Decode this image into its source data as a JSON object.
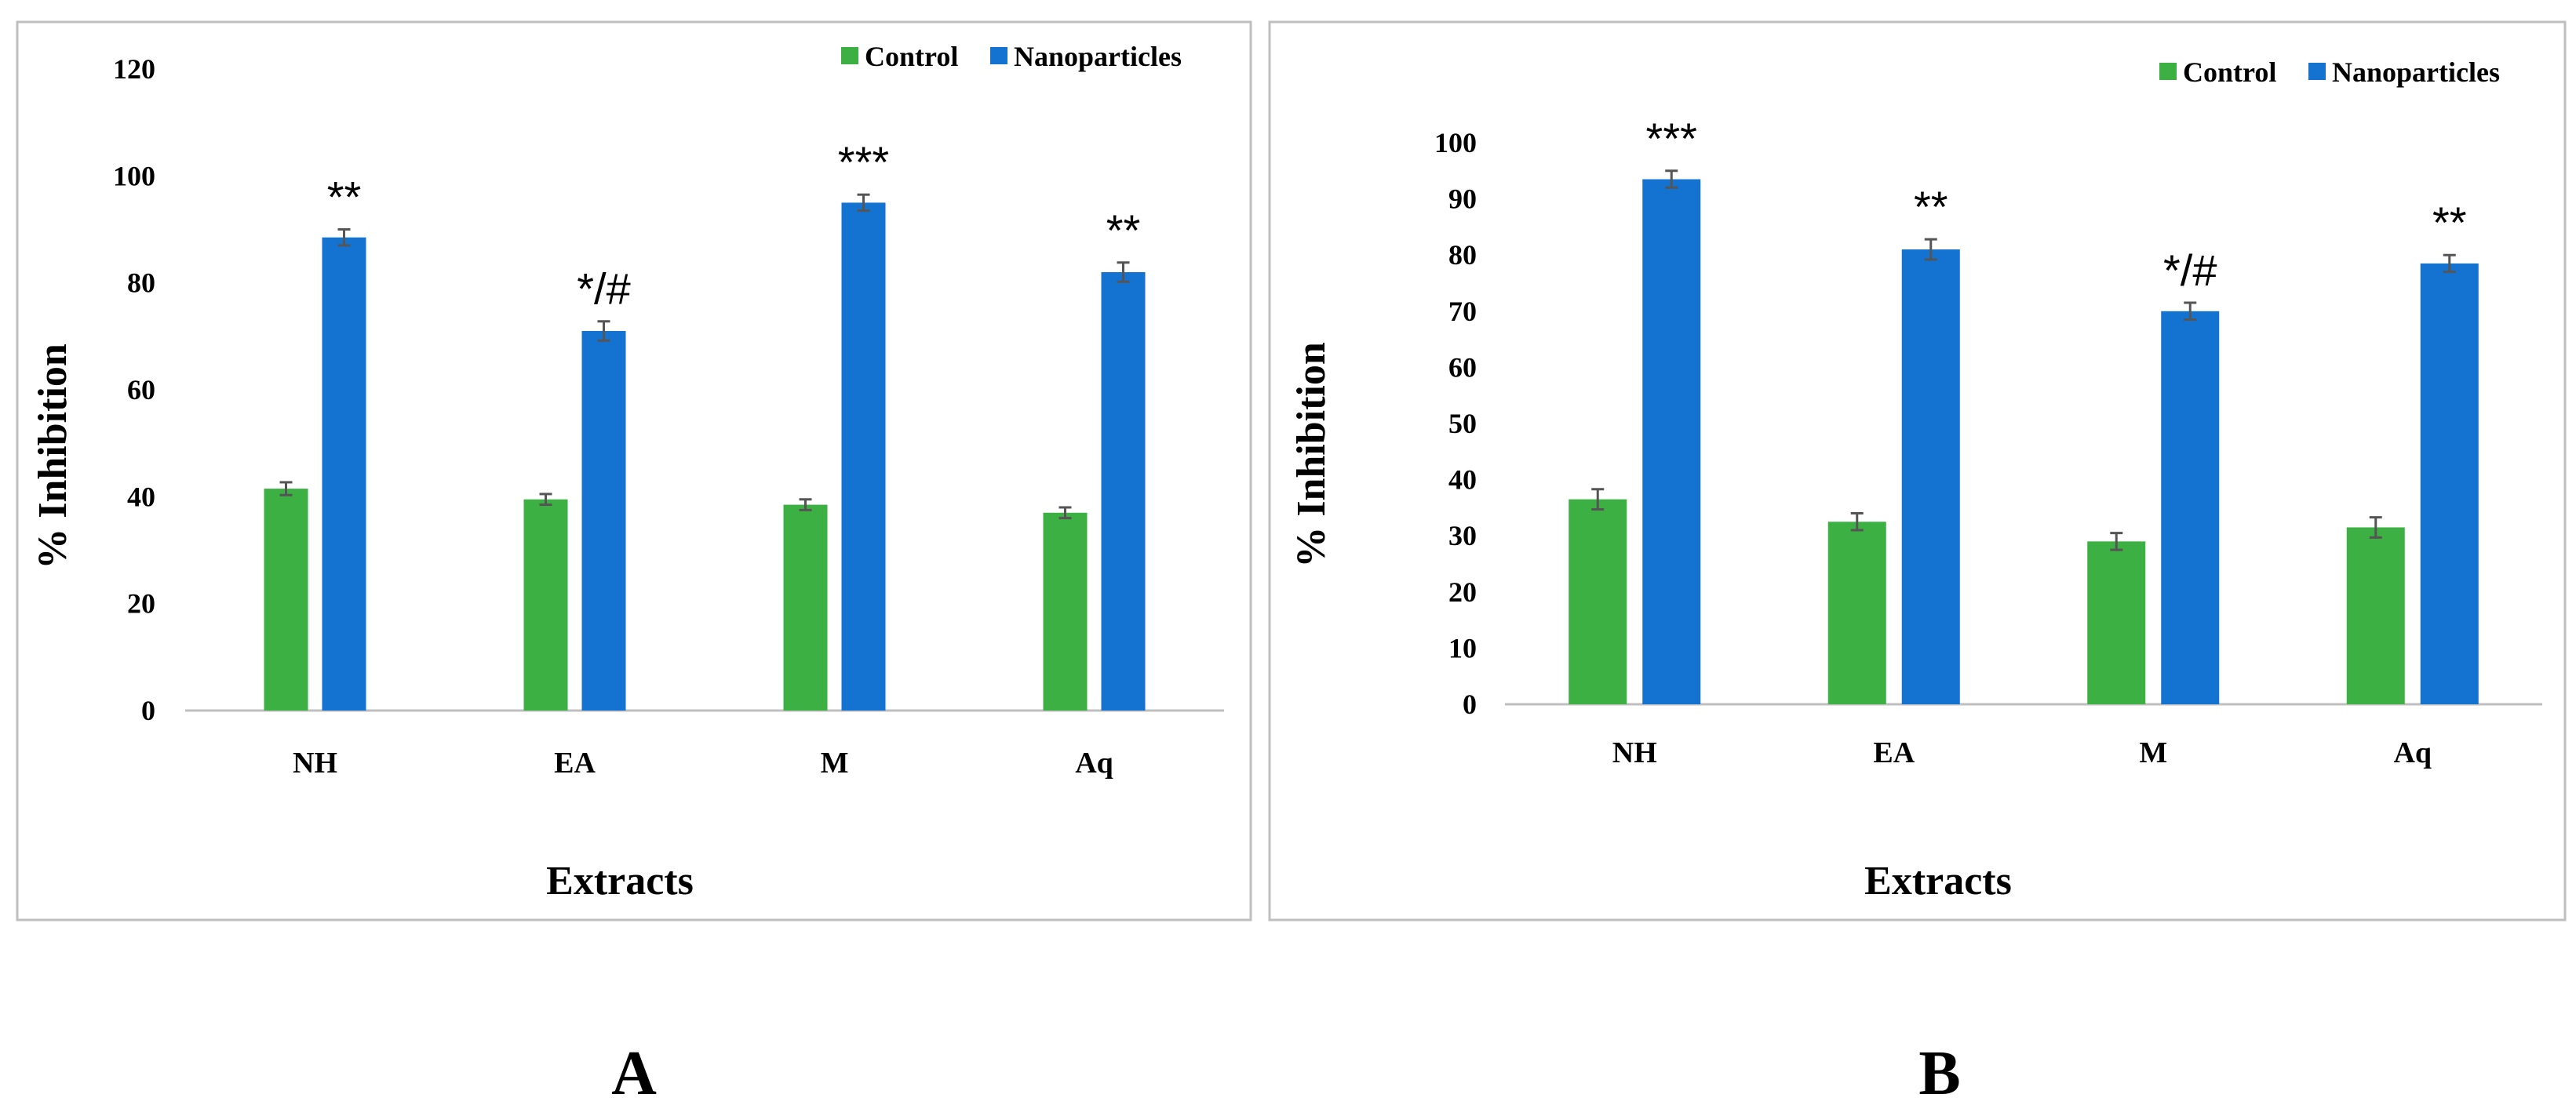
{
  "chart_data": [
    {
      "type": "bar",
      "panel_label": "A",
      "categories": [
        "NH",
        "EA",
        "M",
        "Aq"
      ],
      "series": [
        {
          "name": "Control",
          "color": "#3cb043",
          "values": [
            41.5,
            39.5,
            38.5,
            37
          ],
          "errors": [
            1.2,
            1.0,
            1.0,
            1.0
          ]
        },
        {
          "name": "Nanoparticles",
          "color": "#1472d0",
          "values": [
            88.5,
            71,
            95,
            82
          ],
          "errors": [
            1.5,
            1.8,
            1.5,
            1.8
          ]
        }
      ],
      "annotations": [
        "**",
        "*/#",
        "***",
        "**"
      ],
      "ylim": [
        0,
        120
      ],
      "yticks": [
        "0",
        "20",
        "40",
        "60",
        "80",
        "100",
        "120"
      ],
      "xlabel": "Extracts",
      "ylabel": "% Inhibition",
      "legend_position": "top-right"
    },
    {
      "type": "bar",
      "panel_label": "B",
      "categories": [
        "NH",
        "EA",
        "M",
        "Aq"
      ],
      "series": [
        {
          "name": "Control",
          "color": "#3cb043",
          "values": [
            36.5,
            32.5,
            29,
            31.5
          ],
          "errors": [
            1.8,
            1.5,
            1.5,
            1.8
          ]
        },
        {
          "name": "Nanoparticles",
          "color": "#1472d0",
          "values": [
            93.5,
            81,
            70,
            78.5
          ],
          "errors": [
            1.5,
            1.8,
            1.5,
            1.5
          ]
        }
      ],
      "annotations": [
        "***",
        "**",
        "*/#",
        "**"
      ],
      "ylim": [
        0,
        100
      ],
      "yticks": [
        "0",
        "10",
        "20",
        "30",
        "40",
        "50",
        "60",
        "70",
        "80",
        "90",
        "100"
      ],
      "xlabel": "Extracts",
      "ylabel": "% Inhibition",
      "legend_position": "top-right"
    }
  ]
}
